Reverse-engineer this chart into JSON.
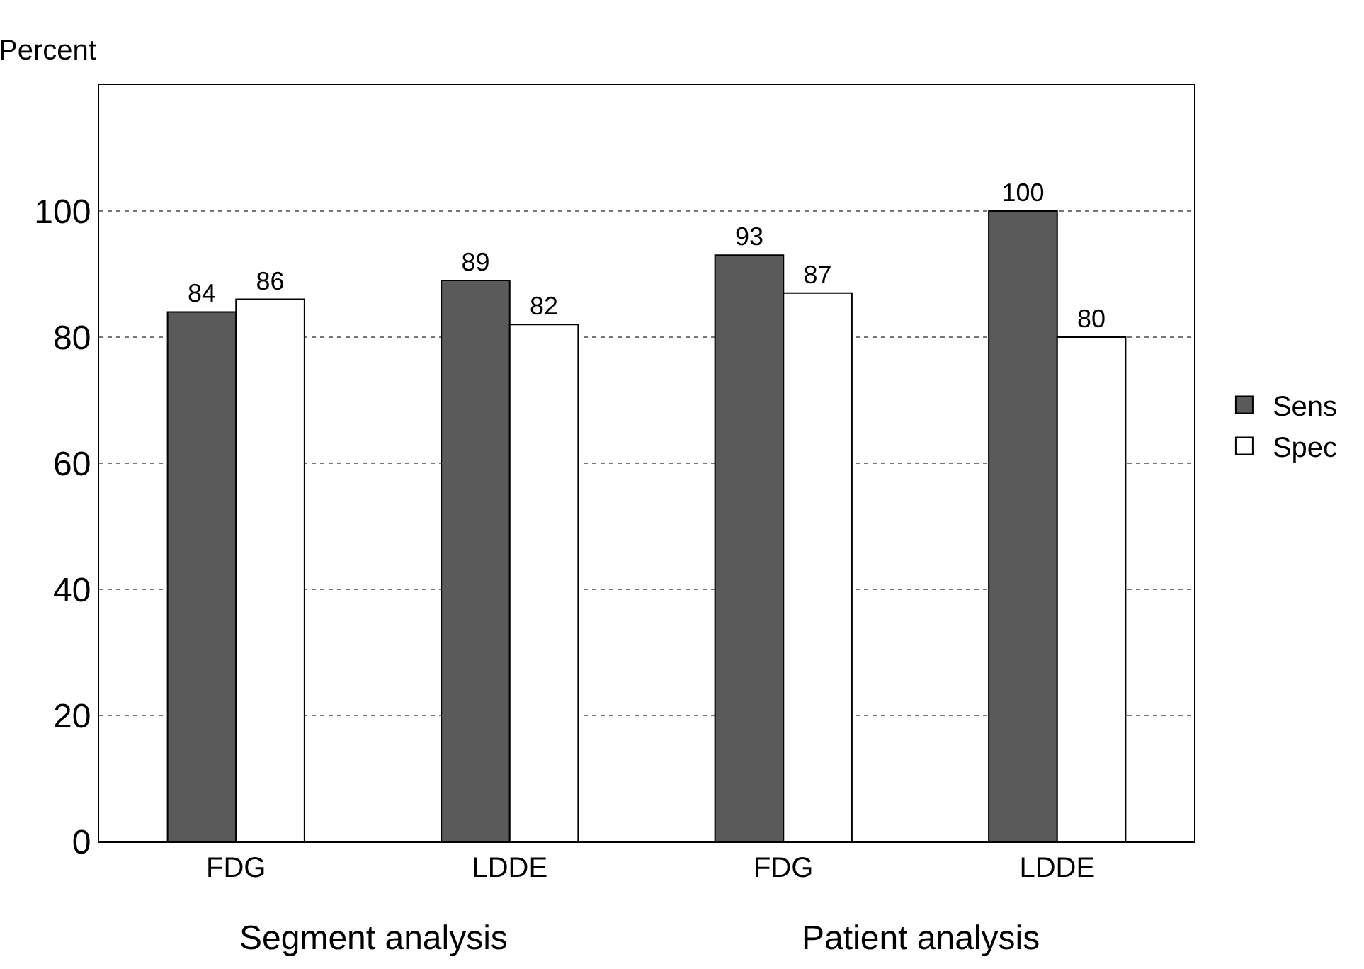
{
  "chart_data": {
    "type": "bar",
    "ylabel": "Percent",
    "categories": [
      "FDG",
      "LDDE",
      "FDG",
      "LDDE"
    ],
    "series": [
      {
        "name": "Sens",
        "color": "#5a5a5a",
        "values": [
          84,
          89,
          93,
          100
        ]
      },
      {
        "name": "Spec",
        "color": "#ffffff",
        "values": [
          86,
          82,
          87,
          80
        ]
      }
    ],
    "ylim": [
      0,
      120
    ],
    "yticks": [
      0,
      20,
      40,
      60,
      80,
      100
    ],
    "grid": "y",
    "legend": "right",
    "data_labels": true,
    "annotations": [
      "Segment analysis",
      "Patient analysis"
    ]
  }
}
